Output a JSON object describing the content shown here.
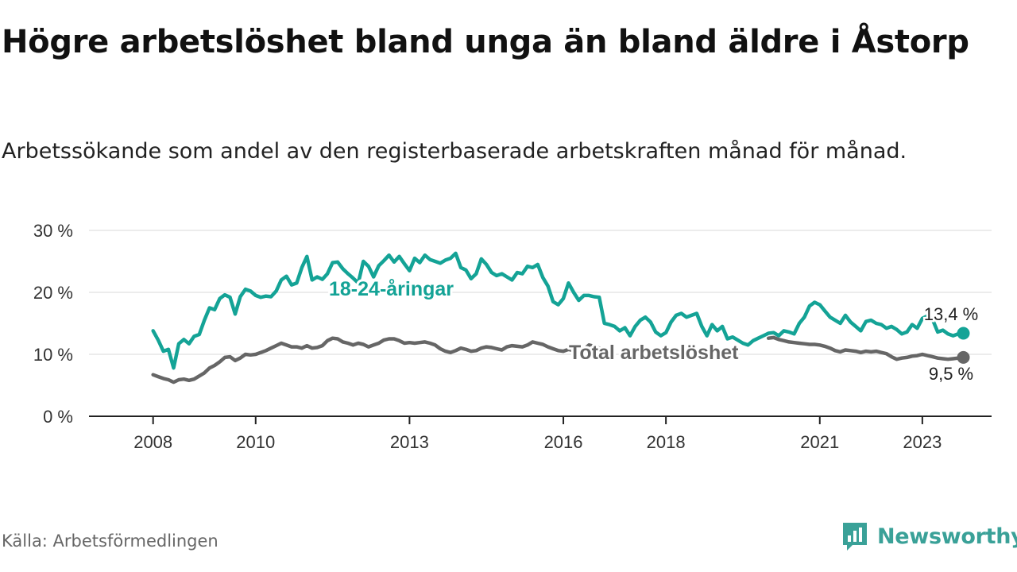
{
  "title": "Högre arbetslöshet bland unga än bland äldre i Åstorp",
  "subtitle": "Arbetssökande som andel av den registerbaserade arbetskraften månad för månad.",
  "source": "Källa: Arbetsförmedlingen",
  "brand": {
    "name": "Newsworthy",
    "icon": "newsworthy-logo-icon",
    "color": "#3aa198"
  },
  "chart_data": {
    "type": "line",
    "title": "Högre arbetslöshet bland unga än bland äldre i Åstorp",
    "xlabel": "",
    "ylabel": "",
    "x_ticks": [
      "2008",
      "2010",
      "2013",
      "2016",
      "2018",
      "2021",
      "2023"
    ],
    "x_tick_values": [
      2008.0,
      2010.0,
      2013.0,
      2016.0,
      2018.0,
      2021.0,
      2023.0
    ],
    "xlim": [
      2006.75,
      2024.35
    ],
    "ylim": [
      0,
      30
    ],
    "y_ticks": [
      {
        "value": 0,
        "label": "0 %"
      },
      {
        "value": 10,
        "label": "10 %"
      },
      {
        "value": 20,
        "label": "20 %"
      },
      {
        "value": 30,
        "label": "30 %"
      }
    ],
    "grid": true,
    "series": [
      {
        "name": "18-24-åringar",
        "color": "#14a396",
        "label": "18-24-åringar",
        "end_label": "13,4 %",
        "points": [
          [
            2008.0,
            13.8
          ],
          [
            2008.1,
            12.3
          ],
          [
            2008.2,
            10.5
          ],
          [
            2008.3,
            10.8
          ],
          [
            2008.4,
            7.8
          ],
          [
            2008.5,
            11.7
          ],
          [
            2008.6,
            12.4
          ],
          [
            2008.7,
            11.7
          ],
          [
            2008.8,
            12.9
          ],
          [
            2008.9,
            13.2
          ],
          [
            2009.0,
            15.5
          ],
          [
            2009.1,
            17.5
          ],
          [
            2009.2,
            17.2
          ],
          [
            2009.3,
            19.0
          ],
          [
            2009.4,
            19.6
          ],
          [
            2009.5,
            19.2
          ],
          [
            2009.6,
            16.5
          ],
          [
            2009.7,
            19.3
          ],
          [
            2009.8,
            20.5
          ],
          [
            2009.9,
            20.2
          ],
          [
            2010.0,
            19.5
          ],
          [
            2010.1,
            19.2
          ],
          [
            2010.2,
            19.4
          ],
          [
            2010.3,
            19.3
          ],
          [
            2010.4,
            20.2
          ],
          [
            2010.5,
            22.0
          ],
          [
            2010.6,
            22.6
          ],
          [
            2010.7,
            21.2
          ],
          [
            2010.8,
            21.5
          ],
          [
            2010.9,
            24.0
          ],
          [
            2011.0,
            25.8
          ],
          [
            2011.1,
            22.0
          ],
          [
            2011.2,
            22.5
          ],
          [
            2011.3,
            22.1
          ],
          [
            2011.4,
            23.0
          ],
          [
            2011.5,
            24.8
          ],
          [
            2011.6,
            24.9
          ],
          [
            2011.7,
            23.8
          ],
          [
            2011.8,
            23.0
          ],
          [
            2011.9,
            22.3
          ],
          [
            2012.0,
            21.5
          ],
          [
            2012.1,
            25.0
          ],
          [
            2012.2,
            24.2
          ],
          [
            2012.3,
            22.5
          ],
          [
            2012.4,
            24.3
          ],
          [
            2012.5,
            25.1
          ],
          [
            2012.6,
            26.0
          ],
          [
            2012.7,
            24.9
          ],
          [
            2012.8,
            25.8
          ],
          [
            2012.9,
            24.6
          ],
          [
            2013.0,
            23.5
          ],
          [
            2013.1,
            25.5
          ],
          [
            2013.2,
            24.8
          ],
          [
            2013.3,
            26.0
          ],
          [
            2013.4,
            25.3
          ],
          [
            2013.5,
            25.0
          ],
          [
            2013.6,
            24.7
          ],
          [
            2013.7,
            25.2
          ],
          [
            2013.8,
            25.5
          ],
          [
            2013.9,
            26.3
          ],
          [
            2014.0,
            24.0
          ],
          [
            2014.1,
            23.6
          ],
          [
            2014.2,
            22.2
          ],
          [
            2014.3,
            23.0
          ],
          [
            2014.4,
            25.4
          ],
          [
            2014.5,
            24.5
          ],
          [
            2014.6,
            23.2
          ],
          [
            2014.7,
            22.7
          ],
          [
            2014.8,
            23.0
          ],
          [
            2014.9,
            22.5
          ],
          [
            2015.0,
            22.0
          ],
          [
            2015.1,
            23.2
          ],
          [
            2015.2,
            23.0
          ],
          [
            2015.3,
            24.2
          ],
          [
            2015.4,
            24.0
          ],
          [
            2015.5,
            24.5
          ],
          [
            2015.6,
            22.4
          ],
          [
            2015.7,
            21.0
          ],
          [
            2015.8,
            18.5
          ],
          [
            2015.9,
            18.0
          ],
          [
            2016.0,
            19.0
          ],
          [
            2016.1,
            21.5
          ],
          [
            2016.2,
            20.0
          ],
          [
            2016.3,
            18.7
          ],
          [
            2016.4,
            19.5
          ],
          [
            2016.5,
            19.5
          ],
          [
            2016.6,
            19.3
          ],
          [
            2016.7,
            19.2
          ],
          [
            2016.8,
            15.0
          ],
          [
            2016.9,
            14.8
          ],
          [
            2017.0,
            14.5
          ],
          [
            2017.1,
            13.8
          ],
          [
            2017.2,
            14.3
          ],
          [
            2017.3,
            13.0
          ],
          [
            2017.4,
            14.5
          ],
          [
            2017.5,
            15.5
          ],
          [
            2017.6,
            16.0
          ],
          [
            2017.7,
            15.2
          ],
          [
            2017.8,
            13.6
          ],
          [
            2017.9,
            13.0
          ],
          [
            2018.0,
            13.5
          ],
          [
            2018.1,
            15.2
          ],
          [
            2018.2,
            16.3
          ],
          [
            2018.3,
            16.6
          ],
          [
            2018.4,
            16.0
          ],
          [
            2018.5,
            16.3
          ],
          [
            2018.6,
            16.6
          ],
          [
            2018.7,
            14.5
          ],
          [
            2018.8,
            13.0
          ],
          [
            2018.9,
            14.8
          ],
          [
            2019.0,
            13.8
          ],
          [
            2019.1,
            14.5
          ],
          [
            2019.2,
            12.5
          ],
          [
            2019.3,
            12.8
          ],
          [
            2019.4,
            12.3
          ],
          [
            2019.5,
            11.8
          ],
          [
            2019.6,
            11.5
          ],
          [
            2019.7,
            12.2
          ],
          [
            2019.8,
            12.6
          ],
          [
            2019.9,
            13.0
          ],
          [
            2020.0,
            13.4
          ],
          [
            2020.1,
            13.5
          ],
          [
            2020.2,
            13.0
          ],
          [
            2020.3,
            13.8
          ],
          [
            2020.4,
            13.6
          ],
          [
            2020.5,
            13.3
          ],
          [
            2020.6,
            15.0
          ],
          [
            2020.7,
            16.0
          ],
          [
            2020.8,
            17.8
          ],
          [
            2020.9,
            18.4
          ],
          [
            2021.0,
            18.0
          ],
          [
            2021.1,
            17.0
          ],
          [
            2021.2,
            16.0
          ],
          [
            2021.3,
            15.5
          ],
          [
            2021.4,
            15.0
          ],
          [
            2021.5,
            16.3
          ],
          [
            2021.6,
            15.2
          ],
          [
            2021.7,
            14.5
          ],
          [
            2021.8,
            13.8
          ],
          [
            2021.9,
            15.3
          ],
          [
            2022.0,
            15.5
          ],
          [
            2022.1,
            15.0
          ],
          [
            2022.2,
            14.8
          ],
          [
            2022.3,
            14.2
          ],
          [
            2022.4,
            14.5
          ],
          [
            2022.5,
            14.0
          ],
          [
            2022.6,
            13.3
          ],
          [
            2022.7,
            13.6
          ],
          [
            2022.8,
            14.8
          ],
          [
            2022.9,
            14.2
          ],
          [
            2023.0,
            15.8
          ],
          [
            2023.1,
            16.2
          ],
          [
            2023.2,
            15.6
          ],
          [
            2023.3,
            13.6
          ],
          [
            2023.4,
            13.9
          ],
          [
            2023.5,
            13.3
          ],
          [
            2023.6,
            13.0
          ],
          [
            2023.7,
            13.3
          ],
          [
            2023.8,
            13.4
          ]
        ]
      },
      {
        "name": "Total arbetslöshet",
        "color": "#666666",
        "label": "Total arbetslöshet",
        "end_label": "9,5 %",
        "points": [
          [
            2008.0,
            6.7
          ],
          [
            2008.1,
            6.4
          ],
          [
            2008.2,
            6.1
          ],
          [
            2008.3,
            5.9
          ],
          [
            2008.4,
            5.5
          ],
          [
            2008.5,
            5.9
          ],
          [
            2008.6,
            6.0
          ],
          [
            2008.7,
            5.8
          ],
          [
            2008.8,
            6.0
          ],
          [
            2008.9,
            6.5
          ],
          [
            2009.0,
            7.0
          ],
          [
            2009.1,
            7.8
          ],
          [
            2009.2,
            8.2
          ],
          [
            2009.3,
            8.8
          ],
          [
            2009.4,
            9.5
          ],
          [
            2009.5,
            9.6
          ],
          [
            2009.6,
            9.0
          ],
          [
            2009.7,
            9.4
          ],
          [
            2009.8,
            10.0
          ],
          [
            2009.9,
            9.9
          ],
          [
            2010.0,
            10.0
          ],
          [
            2010.1,
            10.3
          ],
          [
            2010.2,
            10.6
          ],
          [
            2010.3,
            11.0
          ],
          [
            2010.4,
            11.4
          ],
          [
            2010.5,
            11.8
          ],
          [
            2010.6,
            11.5
          ],
          [
            2010.7,
            11.2
          ],
          [
            2010.8,
            11.2
          ],
          [
            2010.9,
            11.0
          ],
          [
            2011.0,
            11.4
          ],
          [
            2011.1,
            11.0
          ],
          [
            2011.2,
            11.1
          ],
          [
            2011.3,
            11.4
          ],
          [
            2011.4,
            12.2
          ],
          [
            2011.5,
            12.6
          ],
          [
            2011.6,
            12.5
          ],
          [
            2011.7,
            12.0
          ],
          [
            2011.8,
            11.8
          ],
          [
            2011.9,
            11.5
          ],
          [
            2012.0,
            11.8
          ],
          [
            2012.1,
            11.6
          ],
          [
            2012.2,
            11.2
          ],
          [
            2012.3,
            11.5
          ],
          [
            2012.4,
            11.8
          ],
          [
            2012.5,
            12.3
          ],
          [
            2012.6,
            12.5
          ],
          [
            2012.7,
            12.5
          ],
          [
            2012.8,
            12.2
          ],
          [
            2012.9,
            11.8
          ],
          [
            2013.0,
            11.9
          ],
          [
            2013.1,
            11.8
          ],
          [
            2013.2,
            11.9
          ],
          [
            2013.3,
            12.0
          ],
          [
            2013.4,
            11.8
          ],
          [
            2013.5,
            11.5
          ],
          [
            2013.6,
            10.9
          ],
          [
            2013.7,
            10.5
          ],
          [
            2013.8,
            10.3
          ],
          [
            2013.9,
            10.6
          ],
          [
            2014.0,
            11.0
          ],
          [
            2014.1,
            10.8
          ],
          [
            2014.2,
            10.5
          ],
          [
            2014.3,
            10.6
          ],
          [
            2014.4,
            11.0
          ],
          [
            2014.5,
            11.2
          ],
          [
            2014.6,
            11.1
          ],
          [
            2014.7,
            10.9
          ],
          [
            2014.8,
            10.7
          ],
          [
            2014.9,
            11.2
          ],
          [
            2015.0,
            11.4
          ],
          [
            2015.1,
            11.3
          ],
          [
            2015.2,
            11.2
          ],
          [
            2015.3,
            11.5
          ],
          [
            2015.4,
            12.0
          ],
          [
            2015.5,
            11.8
          ],
          [
            2015.6,
            11.6
          ],
          [
            2015.7,
            11.2
          ],
          [
            2015.8,
            10.9
          ],
          [
            2015.9,
            10.6
          ],
          [
            2016.0,
            10.5
          ],
          [
            2016.1,
            10.8
          ],
          [
            2016.2,
            10.6
          ],
          [
            2016.3,
            10.3
          ],
          [
            2016.4,
            10.8
          ],
          [
            2016.5,
            11.5
          ],
          [
            2016.6,
            11.3
          ],
          [
            2016.7,
            11.0
          ],
          [
            2016.8,
            10.8
          ],
          [
            2016.9,
            10.5
          ],
          [
            2020.0,
            12.6
          ],
          [
            2020.1,
            12.7
          ],
          [
            2020.2,
            12.4
          ],
          [
            2020.3,
            12.2
          ],
          [
            2020.4,
            12.0
          ],
          [
            2020.5,
            11.9
          ],
          [
            2020.6,
            11.8
          ],
          [
            2020.7,
            11.7
          ],
          [
            2020.8,
            11.6
          ],
          [
            2020.9,
            11.6
          ],
          [
            2021.0,
            11.5
          ],
          [
            2021.1,
            11.3
          ],
          [
            2021.2,
            11.0
          ],
          [
            2021.3,
            10.6
          ],
          [
            2021.4,
            10.4
          ],
          [
            2021.5,
            10.7
          ],
          [
            2021.6,
            10.6
          ],
          [
            2021.7,
            10.5
          ],
          [
            2021.8,
            10.3
          ],
          [
            2021.9,
            10.5
          ],
          [
            2022.0,
            10.4
          ],
          [
            2022.1,
            10.5
          ],
          [
            2022.2,
            10.3
          ],
          [
            2022.3,
            10.1
          ],
          [
            2022.4,
            9.6
          ],
          [
            2022.5,
            9.2
          ],
          [
            2022.6,
            9.4
          ],
          [
            2022.7,
            9.5
          ],
          [
            2022.8,
            9.7
          ],
          [
            2022.9,
            9.8
          ],
          [
            2023.0,
            10.0
          ],
          [
            2023.1,
            9.8
          ],
          [
            2023.2,
            9.6
          ],
          [
            2023.3,
            9.4
          ],
          [
            2023.4,
            9.3
          ],
          [
            2023.5,
            9.2
          ],
          [
            2023.6,
            9.3
          ],
          [
            2023.7,
            9.4
          ],
          [
            2023.8,
            9.5
          ]
        ]
      }
    ]
  }
}
